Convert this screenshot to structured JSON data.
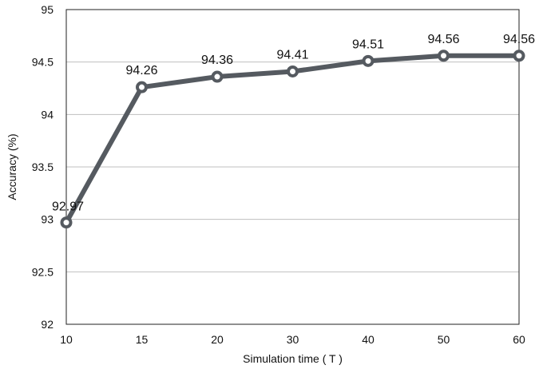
{
  "chart_data": {
    "type": "line",
    "title": "",
    "xlabel": "Simulation time ( T )",
    "ylabel": "Accuracy (%)",
    "categories": [
      "10",
      "15",
      "20",
      "30",
      "40",
      "50",
      "60"
    ],
    "series": [
      {
        "values": [
          92.97,
          94.26,
          94.36,
          94.41,
          94.51,
          94.56,
          94.56
        ],
        "labels": [
          "92.97",
          "94.26",
          "94.36",
          "94.41",
          "94.51",
          "94.56",
          "94.56"
        ],
        "color": "#555a60"
      }
    ],
    "ylim": [
      92,
      95
    ],
    "yticks": [
      "92",
      "92.5",
      "93",
      "93.5",
      "94",
      "94.5",
      "95"
    ],
    "grid": true,
    "gridlines": "horizontal",
    "legend": "none",
    "marker": "hollow-circle",
    "gridColor": "#bfbfbf",
    "axisColor": "#222222"
  }
}
